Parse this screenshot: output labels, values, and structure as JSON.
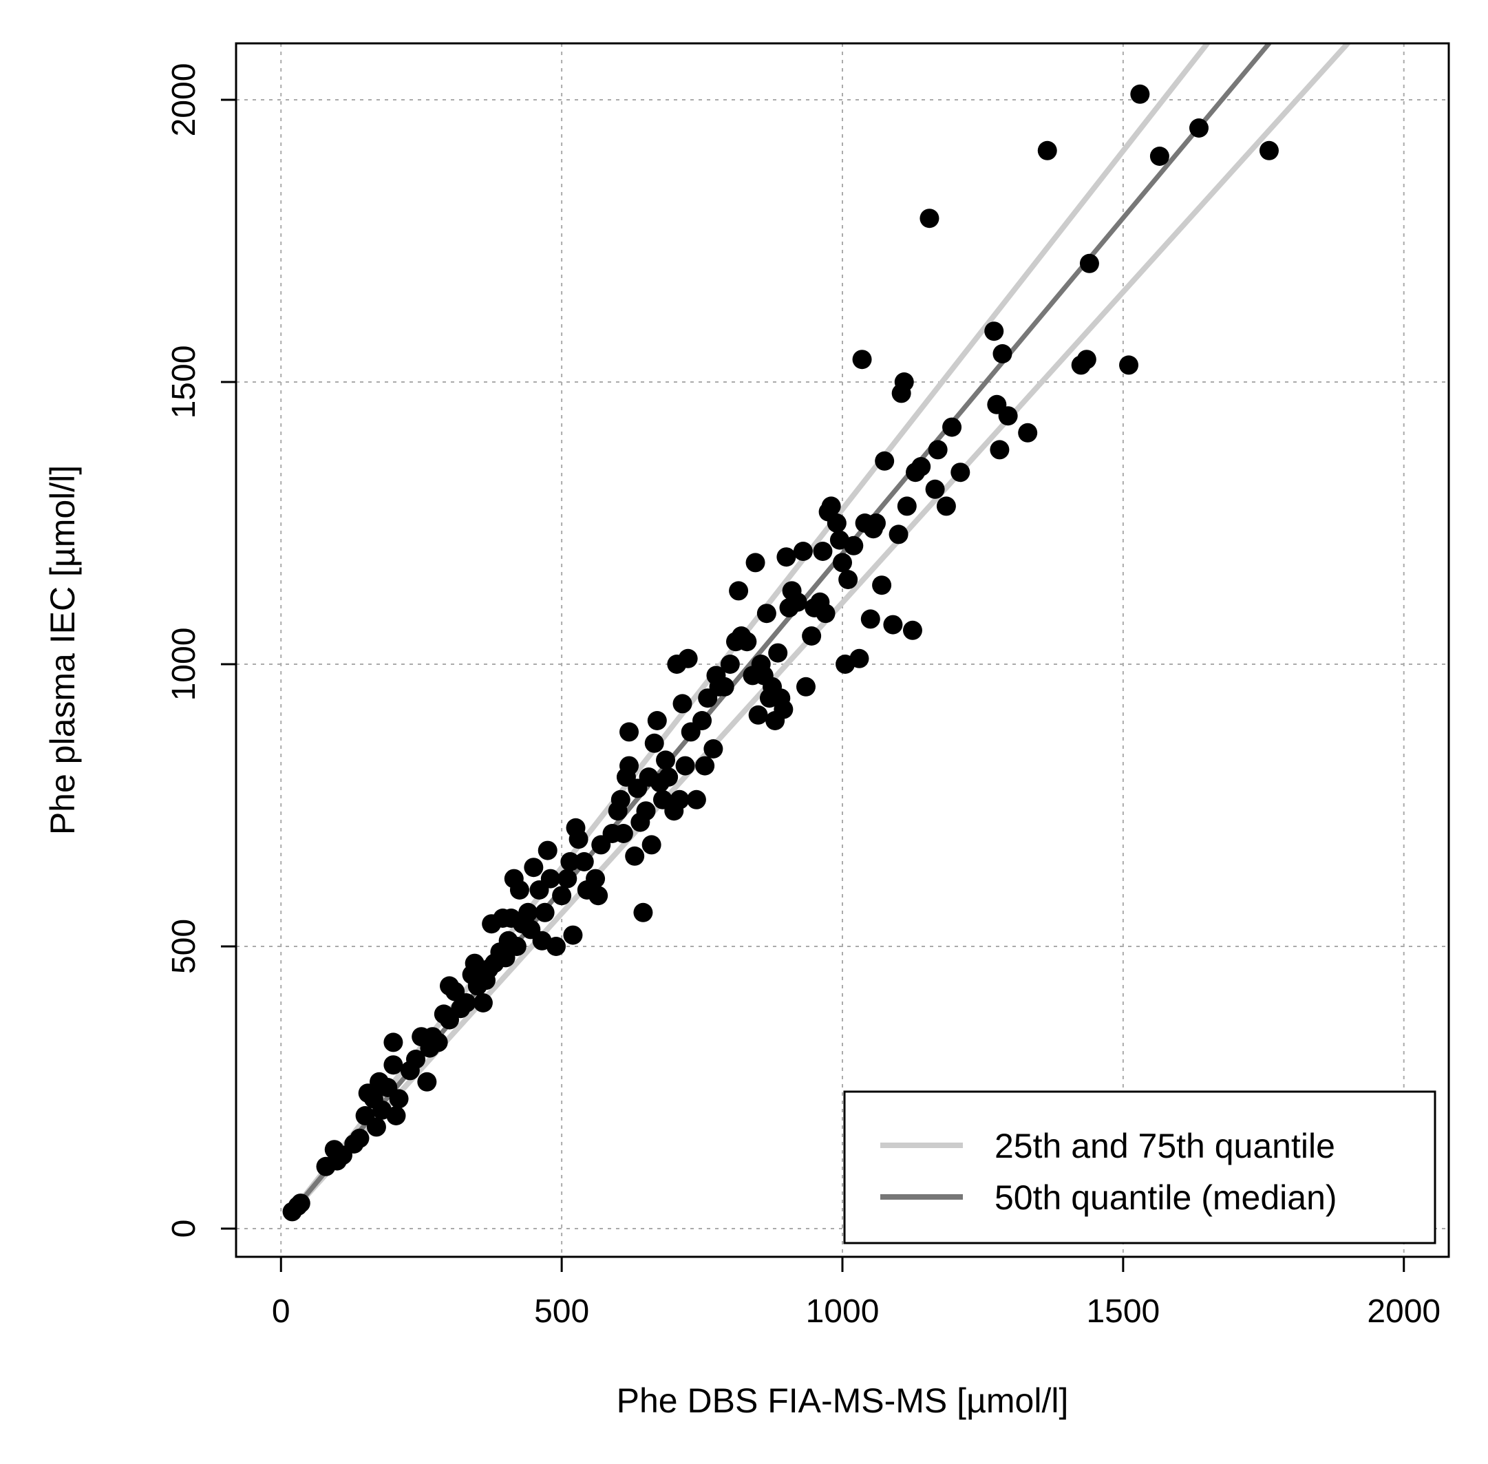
{
  "chart_data": {
    "type": "scatter",
    "title": "",
    "xlabel": "Phe DBS FIA-MS-MS [µmol/l]",
    "ylabel": "Phe plasma IEC [µmol/l]",
    "xlim": [
      -80,
      2080
    ],
    "ylim": [
      -50,
      2100
    ],
    "xticks": [
      0,
      500,
      1000,
      1500,
      2000
    ],
    "yticks": [
      0,
      500,
      1000,
      1500,
      2000
    ],
    "xtick_labels": [
      "0",
      "500",
      "1000",
      "1500",
      "2000"
    ],
    "ytick_labels": [
      "0",
      "500",
      "1000",
      "1500",
      "2000"
    ],
    "grid": true,
    "legend_position": "bottom-right",
    "series": [
      {
        "name": "points",
        "kind": "points",
        "color": "#000000",
        "points": [
          [
            20,
            30
          ],
          [
            30,
            40
          ],
          [
            35,
            45
          ],
          [
            80,
            110
          ],
          [
            95,
            140
          ],
          [
            100,
            120
          ],
          [
            110,
            130
          ],
          [
            130,
            150
          ],
          [
            140,
            160
          ],
          [
            150,
            200
          ],
          [
            155,
            240
          ],
          [
            165,
            230
          ],
          [
            170,
            180
          ],
          [
            175,
            260
          ],
          [
            180,
            210
          ],
          [
            190,
            250
          ],
          [
            200,
            290
          ],
          [
            200,
            330
          ],
          [
            205,
            200
          ],
          [
            210,
            230
          ],
          [
            230,
            280
          ],
          [
            240,
            300
          ],
          [
            250,
            340
          ],
          [
            260,
            260
          ],
          [
            265,
            320
          ],
          [
            270,
            340
          ],
          [
            280,
            330
          ],
          [
            290,
            380
          ],
          [
            300,
            370
          ],
          [
            300,
            430
          ],
          [
            310,
            420
          ],
          [
            320,
            390
          ],
          [
            330,
            400
          ],
          [
            340,
            450
          ],
          [
            345,
            470
          ],
          [
            350,
            430
          ],
          [
            360,
            400
          ],
          [
            365,
            440
          ],
          [
            370,
            460
          ],
          [
            375,
            540
          ],
          [
            380,
            470
          ],
          [
            390,
            490
          ],
          [
            395,
            550
          ],
          [
            400,
            480
          ],
          [
            405,
            510
          ],
          [
            410,
            550
          ],
          [
            415,
            620
          ],
          [
            420,
            500
          ],
          [
            425,
            600
          ],
          [
            430,
            540
          ],
          [
            440,
            560
          ],
          [
            445,
            530
          ],
          [
            450,
            640
          ],
          [
            460,
            600
          ],
          [
            465,
            510
          ],
          [
            470,
            560
          ],
          [
            475,
            670
          ],
          [
            480,
            620
          ],
          [
            490,
            500
          ],
          [
            500,
            590
          ],
          [
            510,
            620
          ],
          [
            515,
            650
          ],
          [
            520,
            520
          ],
          [
            525,
            710
          ],
          [
            530,
            690
          ],
          [
            540,
            650
          ],
          [
            545,
            600
          ],
          [
            560,
            620
          ],
          [
            565,
            590
          ],
          [
            570,
            680
          ],
          [
            590,
            700
          ],
          [
            600,
            740
          ],
          [
            605,
            760
          ],
          [
            610,
            700
          ],
          [
            615,
            800
          ],
          [
            620,
            820
          ],
          [
            620,
            880
          ],
          [
            630,
            660
          ],
          [
            635,
            780
          ],
          [
            640,
            720
          ],
          [
            645,
            560
          ],
          [
            650,
            740
          ],
          [
            655,
            800
          ],
          [
            660,
            680
          ],
          [
            665,
            860
          ],
          [
            670,
            900
          ],
          [
            675,
            790
          ],
          [
            680,
            760
          ],
          [
            685,
            830
          ],
          [
            690,
            800
          ],
          [
            700,
            740
          ],
          [
            705,
            1000
          ],
          [
            710,
            760
          ],
          [
            715,
            930
          ],
          [
            720,
            820
          ],
          [
            725,
            1010
          ],
          [
            730,
            880
          ],
          [
            740,
            760
          ],
          [
            750,
            900
          ],
          [
            755,
            820
          ],
          [
            760,
            940
          ],
          [
            770,
            850
          ],
          [
            775,
            980
          ],
          [
            780,
            960
          ],
          [
            790,
            960
          ],
          [
            800,
            1000
          ],
          [
            810,
            1040
          ],
          [
            815,
            1130
          ],
          [
            820,
            1050
          ],
          [
            830,
            1040
          ],
          [
            840,
            980
          ],
          [
            845,
            1180
          ],
          [
            850,
            910
          ],
          [
            855,
            1000
          ],
          [
            860,
            980
          ],
          [
            865,
            1090
          ],
          [
            870,
            940
          ],
          [
            875,
            960
          ],
          [
            880,
            900
          ],
          [
            885,
            1020
          ],
          [
            890,
            940
          ],
          [
            895,
            920
          ],
          [
            900,
            1190
          ],
          [
            905,
            1100
          ],
          [
            910,
            1130
          ],
          [
            920,
            1110
          ],
          [
            930,
            1200
          ],
          [
            935,
            960
          ],
          [
            945,
            1050
          ],
          [
            950,
            1100
          ],
          [
            960,
            1110
          ],
          [
            965,
            1200
          ],
          [
            970,
            1090
          ],
          [
            975,
            1270
          ],
          [
            980,
            1280
          ],
          [
            990,
            1250
          ],
          [
            995,
            1220
          ],
          [
            1000,
            1180
          ],
          [
            1005,
            1000
          ],
          [
            1010,
            1150
          ],
          [
            1020,
            1210
          ],
          [
            1030,
            1010
          ],
          [
            1035,
            1540
          ],
          [
            1040,
            1250
          ],
          [
            1050,
            1080
          ],
          [
            1055,
            1240
          ],
          [
            1060,
            1250
          ],
          [
            1070,
            1140
          ],
          [
            1075,
            1360
          ],
          [
            1090,
            1070
          ],
          [
            1100,
            1230
          ],
          [
            1105,
            1480
          ],
          [
            1110,
            1500
          ],
          [
            1115,
            1280
          ],
          [
            1125,
            1060
          ],
          [
            1130,
            1340
          ],
          [
            1140,
            1350
          ],
          [
            1155,
            1790
          ],
          [
            1165,
            1310
          ],
          [
            1170,
            1380
          ],
          [
            1185,
            1280
          ],
          [
            1195,
            1420
          ],
          [
            1210,
            1340
          ],
          [
            1270,
            1590
          ],
          [
            1275,
            1460
          ],
          [
            1280,
            1380
          ],
          [
            1285,
            1550
          ],
          [
            1295,
            1440
          ],
          [
            1330,
            1410
          ],
          [
            1365,
            1910
          ],
          [
            1425,
            1530
          ],
          [
            1435,
            1540
          ],
          [
            1440,
            1710
          ],
          [
            1510,
            1530
          ],
          [
            1530,
            2010
          ],
          [
            1565,
            1900
          ],
          [
            1635,
            1950
          ],
          [
            1760,
            1910
          ]
        ]
      },
      {
        "name": "25th and 75th quantile",
        "kind": "line",
        "color": "#cccccc",
        "x": [
          20,
          1650
        ],
        "y": [
          30,
          2100
        ]
      },
      {
        "name": "25th and 75th quantile",
        "kind": "line",
        "color": "#cccccc",
        "x": [
          20,
          1900
        ],
        "y": [
          30,
          2100
        ]
      },
      {
        "name": "50th quantile (median)",
        "kind": "line",
        "color": "#777777",
        "x": [
          20,
          1760
        ],
        "y": [
          30,
          2100
        ]
      }
    ],
    "legend": [
      {
        "label": "25th and 75th quantile",
        "color": "#cccccc"
      },
      {
        "label": "50th quantile (median)",
        "color": "#777777"
      }
    ]
  }
}
